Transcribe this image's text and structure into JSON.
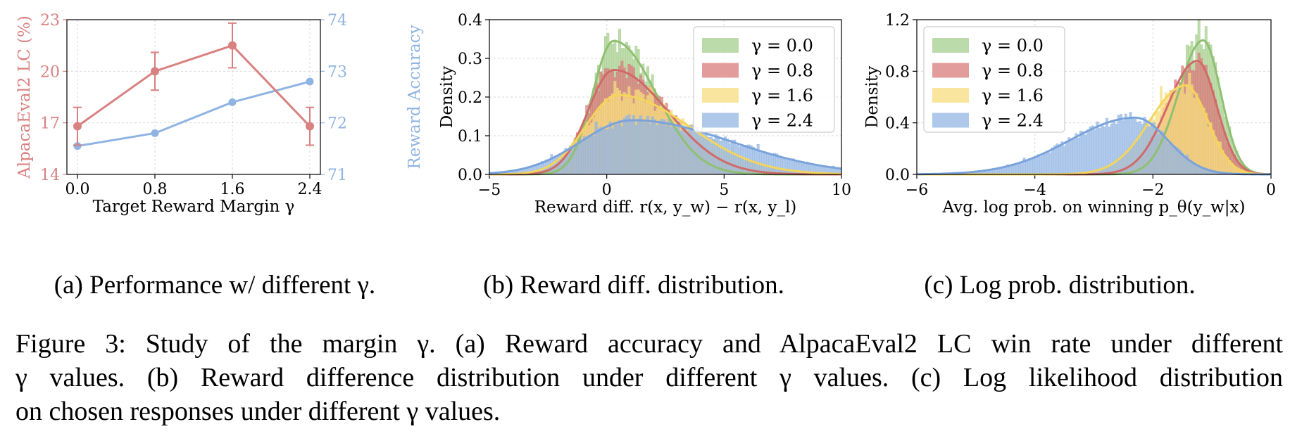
{
  "chart_data": [
    {
      "type": "line",
      "panel": "a",
      "xlabel": "Target Reward Margin γ",
      "ylabel_left": "AlpacaEval2 LC (%)",
      "ylabel_right": "Reward Accuracy",
      "x": [
        0.0,
        0.8,
        1.6,
        2.4
      ],
      "xticks": [
        "0.0",
        "0.8",
        "1.6",
        "2.4"
      ],
      "ylim_left": [
        14,
        23
      ],
      "yticks_left": [
        "14",
        "17",
        "20",
        "23"
      ],
      "ylim_right": [
        71,
        74
      ],
      "yticks_right": [
        "71",
        "72",
        "73",
        "74"
      ],
      "grid": true,
      "series": [
        {
          "axis": "left",
          "color": "#d98080",
          "values": [
            16.8,
            20.0,
            21.5,
            16.8
          ],
          "errors": [
            1.1,
            1.1,
            1.3,
            1.1
          ]
        },
        {
          "axis": "right",
          "color": "#8fb3e3",
          "values": [
            71.55,
            71.8,
            72.4,
            72.8
          ]
        }
      ],
      "caption": "(a) Performance w/ different γ."
    },
    {
      "type": "area",
      "panel": "b",
      "xlabel": "Reward diff. r(x, y_w) − r(x, y_l)",
      "ylabel": "Density",
      "xlim": [
        -5,
        10
      ],
      "xticks": [
        "−5",
        "0",
        "5",
        "10"
      ],
      "ylim": [
        0,
        0.4
      ],
      "yticks": [
        "0.0",
        "0.1",
        "0.2",
        "0.3",
        "0.4"
      ],
      "grid": true,
      "legend_position": "top-right",
      "series": [
        {
          "name": "γ = 0.0",
          "mode": 0.3,
          "peak": 0.345,
          "sd_left": 0.9,
          "sd_right": 1.8,
          "color_fill": "#a6cf8e",
          "color_line": "#8fc071"
        },
        {
          "name": "γ = 0.8",
          "mode": 0.3,
          "peak": 0.27,
          "sd_left": 1.1,
          "sd_right": 2.3,
          "color_fill": "#d97b7b",
          "color_line": "#d06a6a"
        },
        {
          "name": "γ = 1.6",
          "mode": 0.5,
          "peak": 0.205,
          "sd_left": 1.4,
          "sd_right": 3.0,
          "color_fill": "#f7dc7e",
          "color_line": "#f5d55a"
        },
        {
          "name": "γ = 2.4",
          "mode": 1.1,
          "peak": 0.14,
          "sd_left": 2.2,
          "sd_right": 4.2,
          "color_fill": "#93b6e3",
          "color_line": "#7aa3dc"
        }
      ],
      "caption": "(b) Reward diff. distribution."
    },
    {
      "type": "area",
      "panel": "c",
      "xlabel": "Avg. log prob. on winning p_θ(y_w|x)",
      "ylabel": "Density",
      "xlim": [
        -6,
        0
      ],
      "xticks": [
        "−6",
        "−4",
        "−2",
        "0"
      ],
      "ylim": [
        0,
        1.2
      ],
      "yticks": [
        "0.0",
        "0.4",
        "0.8",
        "1.2"
      ],
      "grid": true,
      "legend_position": "top-left",
      "series": [
        {
          "name": "γ = 0.0",
          "mode": -1.15,
          "peak": 1.04,
          "sd_left": 0.42,
          "sd_right": 0.3,
          "color_fill": "#a6cf8e",
          "color_line": "#8fc071"
        },
        {
          "name": "γ = 0.8",
          "mode": -1.25,
          "peak": 0.88,
          "sd_left": 0.5,
          "sd_right": 0.33,
          "color_fill": "#d97b7b",
          "color_line": "#d06a6a"
        },
        {
          "name": "γ = 1.6",
          "mode": -1.45,
          "peak": 0.69,
          "sd_left": 0.6,
          "sd_right": 0.38,
          "color_fill": "#f7dc7e",
          "color_line": "#f5d55a"
        },
        {
          "name": "γ = 2.4",
          "mode": -2.3,
          "peak": 0.44,
          "sd_left": 1.1,
          "sd_right": 0.55,
          "color_fill": "#93b6e3",
          "color_line": "#7aa3dc"
        }
      ],
      "caption": "(c) Log prob. distribution."
    }
  ],
  "caption": {
    "line1": "Figure 3: Study of the margin γ. (a) Reward accuracy and AlpacaEval2 LC win rate under different",
    "line2": "γ values. (b) Reward difference distribution under different γ values. (c) Log likelihood distribution",
    "line3": "on chosen responses under different γ values."
  }
}
